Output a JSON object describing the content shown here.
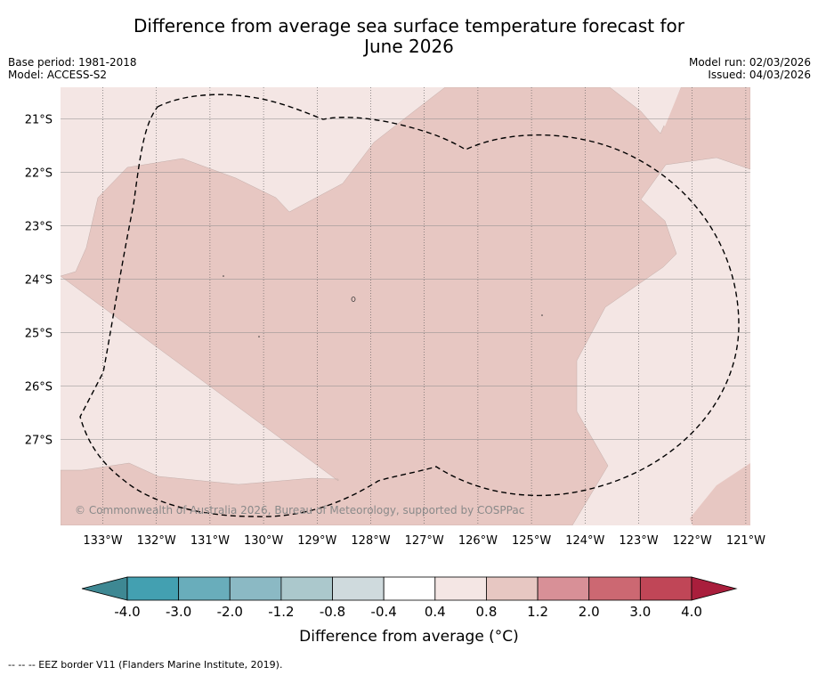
{
  "title_line1": "Difference from average sea surface temperature forecast for",
  "title_line2": "June 2026",
  "meta": {
    "base_period": "Base period: 1981-2018",
    "model": "Model: ACCESS-S2",
    "model_run": "Model run: 02/03/2026",
    "issued": "Issued: 04/03/2026"
  },
  "map": {
    "lon_labels": [
      "133°W",
      "132°W",
      "131°W",
      "130°W",
      "129°W",
      "128°W",
      "127°W",
      "126°W",
      "125°W",
      "124°W",
      "123°W",
      "122°W",
      "121°W"
    ],
    "lat_labels": [
      "21°S",
      "22°S",
      "23°S",
      "24°S",
      "25°S",
      "26°S",
      "27°S"
    ],
    "copyright": "© Commonwealth of Australia 2026, Bureau of Meteorology, supported by COSPPac",
    "colors": {
      "bin_0_4_0_8": "#f4e6e4",
      "bin_0_8_1_2": "#e7c7c2",
      "border": "#000000"
    }
  },
  "colorbar": {
    "label": "Difference from average (°C)",
    "ticks": [
      "-4.0",
      "-3.0",
      "-2.0",
      "-1.2",
      "-0.8",
      "-0.4",
      "0.4",
      "0.8",
      "1.2",
      "2.0",
      "3.0",
      "4.0"
    ],
    "colors": [
      "#43a0b1",
      "#69adbb",
      "#8bb9c4",
      "#abc8cc",
      "#cfdadd",
      "#ffffff",
      "#f4e6e4",
      "#e7c7c2",
      "#d89097",
      "#cc6872",
      "#c04657"
    ],
    "under_color": "#3e8893",
    "over_color": "#a91e3c"
  },
  "footnote": "--  --  -- EEZ border V11 (Flanders Marine Institute, 2019)."
}
